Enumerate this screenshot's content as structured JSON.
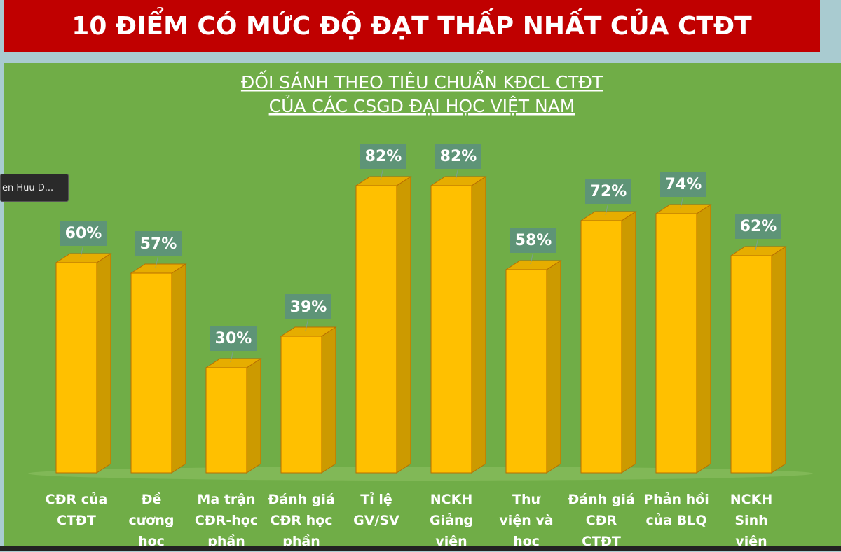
{
  "header": {
    "title": "10 ĐIỂM CÓ MỨC ĐỘ ĐẠT THẤP NHẤT CỦA CTĐT"
  },
  "overlay": {
    "label": "en Huu D..."
  },
  "chart_data": {
    "type": "bar3d",
    "title": [
      "ĐỐI SÁNH THEO TIÊU CHUẨN KĐCL CTĐT",
      "CỦA CÁC CSGD ĐẠI HỌC VIỆT NAM"
    ],
    "categories": [
      "CĐR của\nCTĐT",
      "Đề\ncương\nhọc",
      "Ma trận\nCĐR-học\nphần",
      "Đánh giá\nCĐR học\nphần",
      "Tỉ lệ\nGV/SV",
      "NCKH\nGiảng\nviên",
      "Thư\nviện và\nhọc",
      "Đánh giá\nCĐR\nCTĐT",
      "Phản hồi\ncủa BLQ",
      "NCKH\nSinh\nviên"
    ],
    "values": [
      60,
      57,
      30,
      39,
      82,
      82,
      58,
      72,
      74,
      62
    ],
    "value_labels": [
      "60%",
      "57%",
      "30%",
      "39%",
      "82%",
      "82%",
      "58%",
      "72%",
      "74%",
      "62%"
    ],
    "color": "#ffc000"
  }
}
